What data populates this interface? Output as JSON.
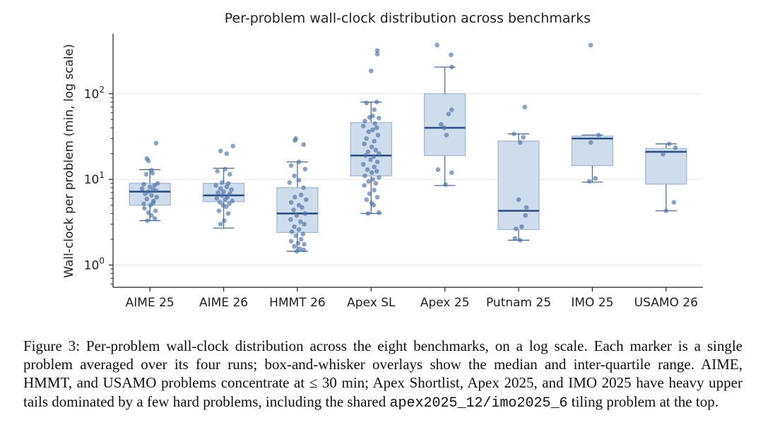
{
  "chart_data": {
    "type": "box",
    "title": "Per-problem wall-clock distribution across benchmarks",
    "ylabel": "Wall-clock per problem (min, log scale)",
    "xlabel": "",
    "yscale": "log",
    "ylim": [
      0.55,
      500
    ],
    "yticks": [
      {
        "value": 1,
        "base": "10",
        "exp": "0"
      },
      {
        "value": 10,
        "base": "10",
        "exp": "1"
      },
      {
        "value": 100,
        "base": "10",
        "exp": "2"
      }
    ],
    "grid": "horizontal",
    "colors": {
      "box_fill": "#cfdcec",
      "box_edge": "#9fb6d2",
      "median": "#2c4f86",
      "whisker": "#4f6f98",
      "points": "#4c72a8",
      "grid": "#e6e6e6"
    },
    "categories": [
      "AIME 25",
      "AIME 26",
      "HMMT 26",
      "Apex SL",
      "Apex 25",
      "Putnam 25",
      "IMO 25",
      "USAMO 26"
    ],
    "boxes": [
      {
        "category": "AIME 25",
        "whislo": 3.3,
        "q1": 5.0,
        "median": 7.2,
        "q3": 9.0,
        "whishi": 13.0,
        "points": [
          [
            0.2,
            26.5
          ],
          [
            -0.1,
            17.5
          ],
          [
            -0.05,
            16.5
          ],
          [
            0.05,
            12.8
          ],
          [
            -0.12,
            11.5
          ],
          [
            0.08,
            11.8
          ],
          [
            0.25,
            9.0
          ],
          [
            -0.2,
            8.8
          ],
          [
            0.15,
            8.5
          ],
          [
            0,
            8.2
          ],
          [
            -0.25,
            7.8
          ],
          [
            0.1,
            7.6
          ],
          [
            -0.05,
            7.2
          ],
          [
            0.2,
            7.4
          ],
          [
            -0.15,
            6.8
          ],
          [
            0.05,
            6.5
          ],
          [
            0.22,
            6.2
          ],
          [
            -0.1,
            5.9
          ],
          [
            0.12,
            5.6
          ],
          [
            -0.2,
            5.2
          ],
          [
            0.02,
            5.0
          ],
          [
            0.1,
            5.3
          ],
          [
            -0.18,
            4.6
          ],
          [
            0.18,
            4.3
          ],
          [
            -0.05,
            4.1
          ],
          [
            0.05,
            3.8
          ],
          [
            0.16,
            3.5
          ],
          [
            -0.08,
            3.3
          ]
        ]
      },
      {
        "category": "AIME 26",
        "whislo": 2.7,
        "q1": 5.5,
        "median": 6.5,
        "q3": 9.0,
        "whishi": 13.5,
        "points": [
          [
            0.3,
            24.5
          ],
          [
            -0.1,
            21.5
          ],
          [
            0.1,
            20.0
          ],
          [
            0.05,
            13.2
          ],
          [
            -0.2,
            12.5
          ],
          [
            0.2,
            11.5
          ],
          [
            -0.05,
            9.2
          ],
          [
            0.15,
            9.0
          ],
          [
            -0.25,
            8.5
          ],
          [
            0.1,
            8.2
          ],
          [
            -0.1,
            7.8
          ],
          [
            0.25,
            7.6
          ],
          [
            0,
            7.2
          ],
          [
            -0.18,
            7.0
          ],
          [
            0.2,
            6.8
          ],
          [
            -0.05,
            6.5
          ],
          [
            0.12,
            6.2
          ],
          [
            -0.22,
            6.0
          ],
          [
            0.05,
            5.8
          ],
          [
            0.28,
            5.6
          ],
          [
            -0.12,
            5.4
          ],
          [
            0.18,
            5.2
          ],
          [
            -0.02,
            5.0
          ],
          [
            0.08,
            4.8
          ],
          [
            -0.15,
            4.3
          ],
          [
            0.15,
            4.0
          ],
          [
            0.02,
            3.3
          ],
          [
            -0.1,
            3.0
          ]
        ]
      },
      {
        "category": "HMMT 26",
        "whislo": 1.45,
        "q1": 2.4,
        "median": 4.0,
        "q3": 8.0,
        "whishi": 16.0,
        "points": [
          [
            -0.05,
            30.0
          ],
          [
            -0.08,
            28.5
          ],
          [
            0.2,
            25.5
          ],
          [
            0.05,
            16.0
          ],
          [
            -0.2,
            14.5
          ],
          [
            0.25,
            13.2
          ],
          [
            -0.1,
            11.0
          ],
          [
            0.05,
            9.8
          ],
          [
            -0.25,
            9.2
          ],
          [
            0.2,
            8.0
          ],
          [
            0.12,
            6.6
          ],
          [
            -0.08,
            6.2
          ],
          [
            0.28,
            5.8
          ],
          [
            -0.2,
            5.4
          ],
          [
            0.05,
            5.0
          ],
          [
            0.15,
            4.7
          ],
          [
            -0.12,
            4.4
          ],
          [
            0.25,
            4.0
          ],
          [
            -0.02,
            3.8
          ],
          [
            -0.22,
            3.4
          ],
          [
            0.1,
            3.2
          ],
          [
            0.22,
            3.0
          ],
          [
            -0.1,
            2.8
          ],
          [
            0.05,
            2.6
          ],
          [
            -0.18,
            2.45
          ],
          [
            0.18,
            2.3
          ],
          [
            -0.05,
            2.2
          ],
          [
            0.12,
            2.0
          ],
          [
            -0.2,
            1.9
          ],
          [
            0.02,
            1.8
          ],
          [
            0.22,
            1.75
          ],
          [
            -0.1,
            1.65
          ],
          [
            0.08,
            1.55
          ],
          [
            0.2,
            1.5
          ],
          [
            -0.02,
            1.45
          ]
        ]
      },
      {
        "category": "Apex SL",
        "whislo": 4.0,
        "q1": 11.0,
        "median": 19.0,
        "q3": 46.0,
        "whishi": 80.0,
        "points": [
          [
            0.2,
            320
          ],
          [
            0.2,
            290
          ],
          [
            0,
            185
          ],
          [
            0.18,
            80
          ],
          [
            -0.15,
            78
          ],
          [
            0.1,
            65
          ],
          [
            0.05,
            55
          ],
          [
            -0.05,
            53
          ],
          [
            0.25,
            52
          ],
          [
            -0.2,
            48
          ],
          [
            0.12,
            45
          ],
          [
            -0.25,
            42
          ],
          [
            0.18,
            40
          ],
          [
            0.05,
            38
          ],
          [
            -0.08,
            36
          ],
          [
            0.22,
            33
          ],
          [
            -0.15,
            30
          ],
          [
            0.1,
            28
          ],
          [
            -0.22,
            26
          ],
          [
            0.02,
            24
          ],
          [
            0.15,
            22
          ],
          [
            -0.1,
            21
          ],
          [
            0.25,
            20
          ],
          [
            -0.18,
            19
          ],
          [
            0.08,
            18.5
          ],
          [
            -0.02,
            17
          ],
          [
            0.2,
            16
          ],
          [
            -0.25,
            15
          ],
          [
            0.1,
            14
          ],
          [
            -0.12,
            13
          ],
          [
            0.18,
            12.5
          ],
          [
            0.02,
            12
          ],
          [
            -0.2,
            11
          ],
          [
            0.25,
            10.5
          ],
          [
            0.06,
            10
          ],
          [
            -0.08,
            9.5
          ],
          [
            0.15,
            9
          ],
          [
            -0.22,
            8.5
          ],
          [
            0.1,
            7.5
          ],
          [
            -0.05,
            6.8
          ],
          [
            0.2,
            6.2
          ],
          [
            -0.15,
            5.8
          ],
          [
            0.02,
            5.3
          ],
          [
            0.08,
            5.0
          ],
          [
            0.25,
            4.1
          ],
          [
            -0.1,
            4.0
          ]
        ]
      },
      {
        "category": "Apex 25",
        "whislo": 8.5,
        "q1": 19.0,
        "median": 40.0,
        "q3": 100.0,
        "whishi": 205.0,
        "points": [
          [
            -0.25,
            370
          ],
          [
            0.2,
            285
          ],
          [
            0.22,
            205
          ],
          [
            0.22,
            65
          ],
          [
            0.12,
            58
          ],
          [
            -0.12,
            44
          ],
          [
            -0.02,
            40
          ],
          [
            0.05,
            33
          ],
          [
            -0.22,
            13
          ],
          [
            0.22,
            12
          ],
          [
            0.02,
            8.7
          ]
        ]
      },
      {
        "category": "Putnam 25",
        "whislo": 1.95,
        "q1": 2.6,
        "median": 4.3,
        "q3": 28.0,
        "whishi": 34.0,
        "points": [
          [
            0.2,
            70
          ],
          [
            -0.15,
            34
          ],
          [
            0.15,
            31
          ],
          [
            0.05,
            27
          ],
          [
            0,
            5.8
          ],
          [
            0.25,
            4.7
          ],
          [
            0.22,
            3.8
          ],
          [
            0.1,
            2.8
          ],
          [
            -0.08,
            2.65
          ],
          [
            -0.12,
            2.05
          ],
          [
            0.05,
            1.95
          ]
        ]
      },
      {
        "category": "IMO 25",
        "whislo": 9.3,
        "q1": 14.5,
        "median": 30.0,
        "q3": 32.0,
        "whishi": 33.0,
        "points": [
          [
            -0.05,
            370
          ],
          [
            0.2,
            33
          ],
          [
            -0.05,
            27
          ],
          [
            0.1,
            10.3
          ],
          [
            -0.1,
            9.5
          ]
        ]
      },
      {
        "category": "USAMO 26",
        "whislo": 4.3,
        "q1": 8.8,
        "median": 21.0,
        "q3": 23.0,
        "whishi": 26.0,
        "points": [
          [
            0.1,
            26.0
          ],
          [
            0.3,
            23.5
          ],
          [
            -0.1,
            19.8
          ],
          [
            0.25,
            5.4
          ],
          [
            0,
            4.3
          ]
        ]
      }
    ]
  },
  "caption": {
    "lead": "Figure 3: Per-problem wall-clock distribution across the eight benchmarks, on a log scale. Each marker is a single problem averaged over its four runs; box-and-whisker overlays show the median and inter-quartile range. AIME, HMMT, and USAMO problems concentrate at ",
    "math": "≤ 30 min",
    "middle": "; Apex Shortlist, Apex 2025, and IMO 2025 have heavy upper tails dominated by a few hard problems, including the shared ",
    "code": "apex2025_12/imo2025_6",
    "tail": " tiling problem at the top."
  }
}
